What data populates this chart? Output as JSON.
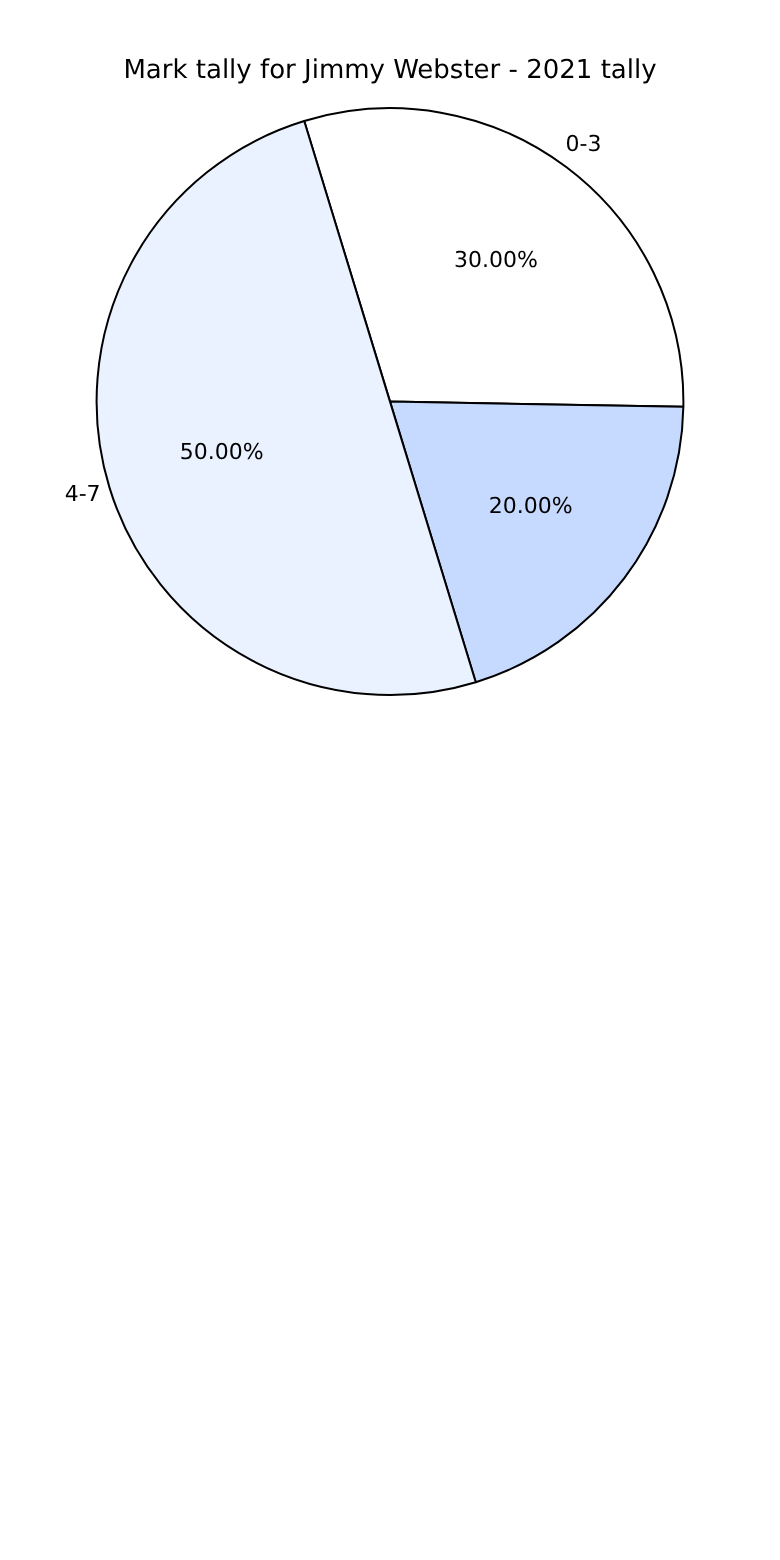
{
  "chart_data": {
    "type": "pie",
    "title": "Mark tally for Jimmy Webster - 2021 tally",
    "categories": [
      "0-3",
      null,
      "4-7"
    ],
    "values": [
      30,
      20,
      50
    ],
    "value_labels": [
      "30.00%",
      "20.00%",
      "50.00%"
    ],
    "colors": [
      "#ffffff",
      "#c6d9ff",
      "#eaf1ff"
    ],
    "legend": false
  }
}
